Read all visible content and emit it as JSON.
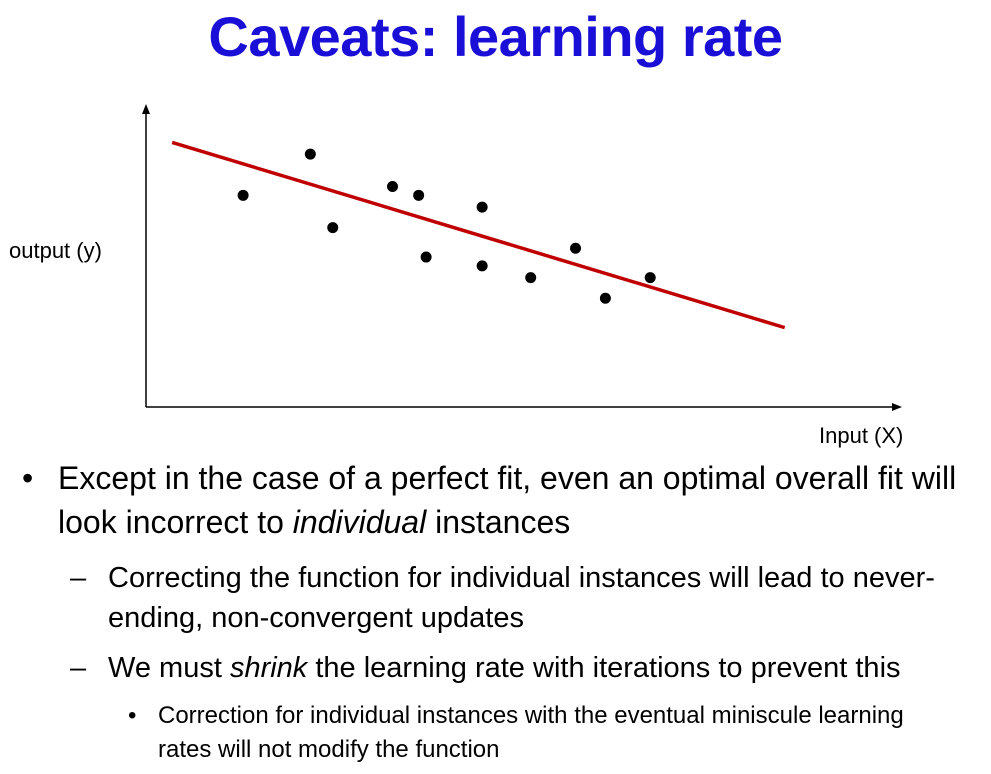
{
  "slide": {
    "title": "Caveats: learning rate",
    "ylabel": "output (y)",
    "xlabel": "Input (X)",
    "bullet1": {
      "before": "Except in the case of a perfect fit, even an optimal overall fit will look incorrect to ",
      "italic": "individual",
      "after": " instances"
    },
    "dash1": "Correcting the function for individual instances will lead to never-ending, non-convergent updates",
    "dash2": {
      "before": "We must ",
      "italic": "shrink",
      "after": " the learning rate with iterations to prevent this"
    },
    "sub1": "Correction for individual instances with the eventual miniscule learning rates will not modify the function",
    "bullet_glyph": "•",
    "dash_glyph": "–"
  },
  "colors": {
    "title": "#1a0fd6",
    "fit_line": "#c00000",
    "points": "#000000"
  },
  "chart_data": {
    "type": "scatter",
    "title": "",
    "xlabel": "Input (X)",
    "ylabel": "output (y)",
    "xlim": [
      0,
      100
    ],
    "ylim": [
      0,
      100
    ],
    "grid": false,
    "points": [
      {
        "x": 13,
        "y": 72
      },
      {
        "x": 22,
        "y": 86
      },
      {
        "x": 25,
        "y": 61
      },
      {
        "x": 33,
        "y": 75
      },
      {
        "x": 36.5,
        "y": 72
      },
      {
        "x": 37.5,
        "y": 51
      },
      {
        "x": 45,
        "y": 68
      },
      {
        "x": 45,
        "y": 48
      },
      {
        "x": 51.5,
        "y": 44
      },
      {
        "x": 57.5,
        "y": 54
      },
      {
        "x": 61.5,
        "y": 37
      },
      {
        "x": 67.5,
        "y": 44
      }
    ],
    "fit_line": {
      "x": [
        3.5,
        85.5
      ],
      "y": [
        90,
        27
      ]
    }
  }
}
